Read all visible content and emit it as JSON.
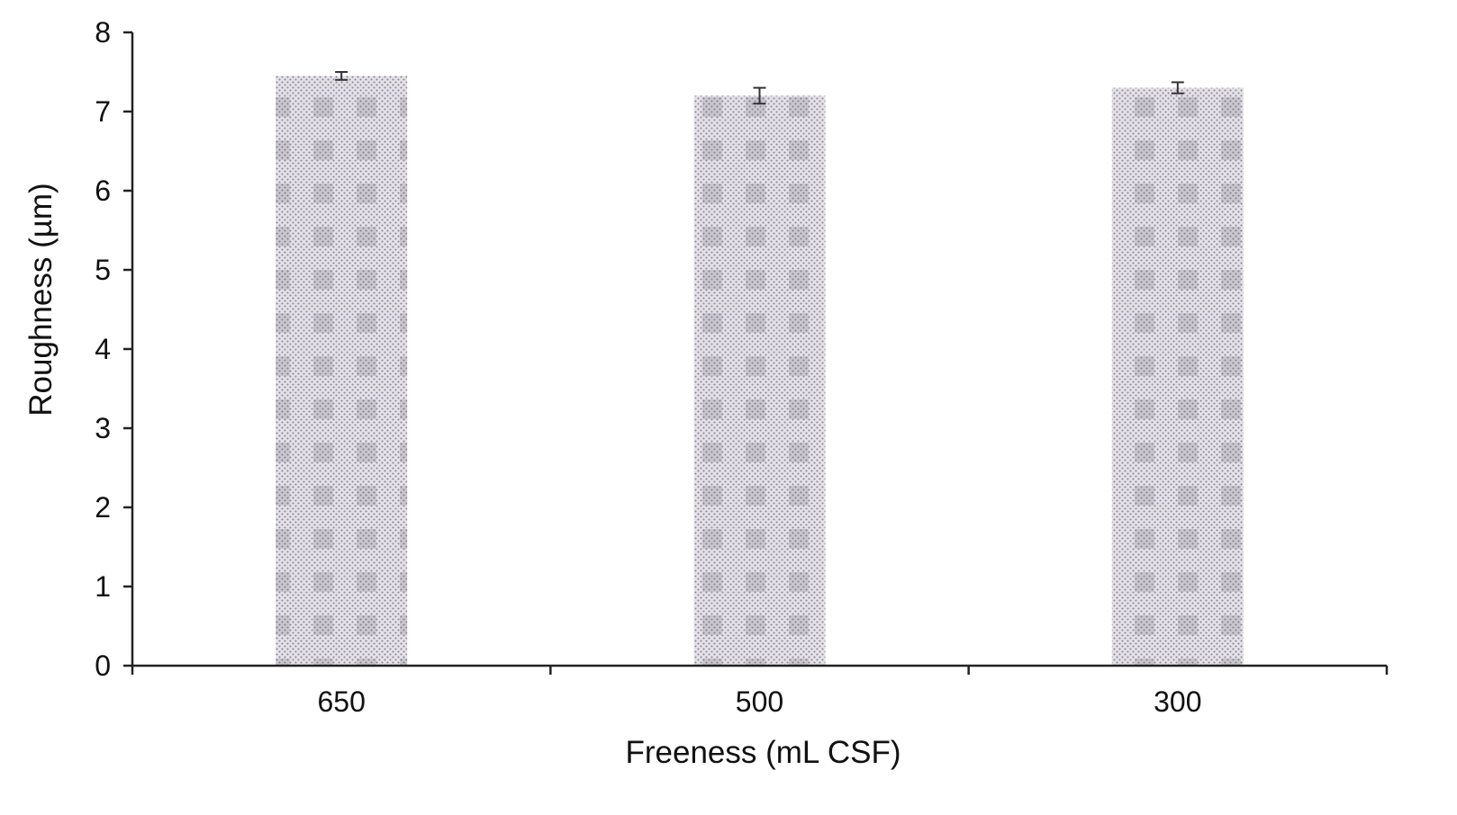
{
  "chart_data": {
    "type": "bar",
    "title": "",
    "xlabel": "Freeness (mL CSF)",
    "ylabel": "Roughness (µm)",
    "categories": [
      "650",
      "500",
      "300"
    ],
    "values": [
      7.45,
      7.2,
      7.3
    ],
    "errors": [
      0.05,
      0.1,
      0.07
    ],
    "ylim": [
      0,
      8
    ],
    "yticks": [
      "0",
      "1",
      "2",
      "3",
      "4",
      "5",
      "6",
      "7",
      "8"
    ],
    "grid": false,
    "legend": "none",
    "colors": {
      "bar_fill": "#e4e1e8",
      "bar_dots": "#8a8594",
      "axis": "#222222",
      "error_bar": "#333333"
    }
  }
}
